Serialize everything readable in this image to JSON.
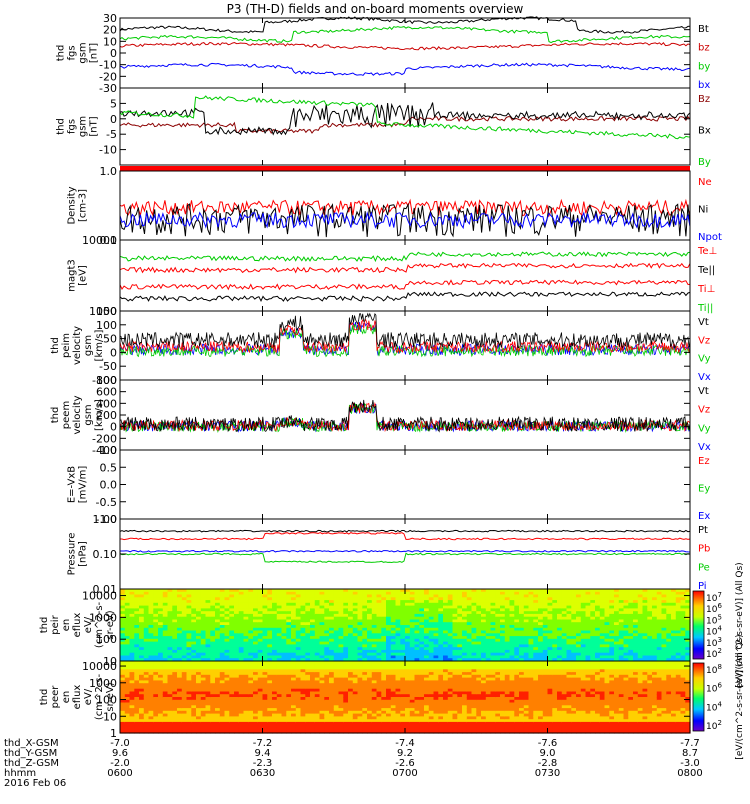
{
  "title": "P3 (TH-D) fields and on-board moments overview",
  "colors": {
    "black": "#000000",
    "red": "#ff0000",
    "green": "#00dd00",
    "blue": "#0000ff"
  },
  "time_axis": {
    "ticks": [
      "0600",
      "0630",
      "0700",
      "0730",
      "0800"
    ],
    "date": "2016 Feb 06",
    "rows": [
      {
        "label": "thd_X-GSM",
        "values": [
          "-7.0",
          "-7.2",
          "-7.4",
          "-7.6",
          "-7.7"
        ]
      },
      {
        "label": "thd_Y-GSM",
        "values": [
          "9.6",
          "9.4",
          "9.2",
          "9.0",
          "8.7"
        ]
      },
      {
        "label": "thd_Z-GSM",
        "values": [
          "-2.0",
          "-2.3",
          "-2.6",
          "-2.8",
          "-3.0"
        ]
      },
      {
        "label": "hhmm",
        "values": [
          "0600",
          "0630",
          "0700",
          "0730",
          "0800"
        ]
      }
    ]
  },
  "chart_data": [
    {
      "type": "line",
      "ylabel": [
        "thd",
        "fgs",
        "gsm",
        "[nT]"
      ],
      "ylim": [
        -30,
        30
      ],
      "yticks": [
        "30",
        "20",
        "10",
        "0",
        "-10",
        "-20",
        "-30"
      ],
      "series": [
        {
          "name": "Bt",
          "color": "#000000"
        },
        {
          "name": "bz",
          "color": "#cc0000"
        },
        {
          "name": "by",
          "color": "#00cc00"
        },
        {
          "name": "bx",
          "color": "#0000ff"
        }
      ]
    },
    {
      "type": "line",
      "ylabel": [
        "thd",
        "fgs",
        "gsm",
        "[nT]"
      ],
      "ylim": [
        -15,
        10
      ],
      "yticks": [
        "5",
        "0",
        "-5",
        "-10"
      ],
      "series": [
        {
          "name": "Bz",
          "color": "#8b0000"
        },
        {
          "name": "Bx",
          "color": "#000000"
        },
        {
          "name": "By",
          "color": "#00cc00"
        }
      ]
    },
    {
      "type": "line",
      "ylabel": [
        "Density",
        "[cm-3]"
      ],
      "ylim": [
        0.1,
        1.0
      ],
      "yscale": "log",
      "yticks": [
        "1.0",
        "0.1"
      ],
      "series": [
        {
          "name": "Ne",
          "color": "#ff0000"
        },
        {
          "name": "Ni",
          "color": "#000000"
        },
        {
          "name": "Npot",
          "color": "#0000ff"
        }
      ]
    },
    {
      "type": "line",
      "ylabel": [
        "magt3",
        "[eV]"
      ],
      "ylim": [
        1000,
        10000
      ],
      "yscale": "log",
      "yticks": [
        "10000",
        "1000"
      ],
      "series": [
        {
          "name": "Te⊥",
          "color": "#ff0000"
        },
        {
          "name": "Te||",
          "color": "#000000"
        },
        {
          "name": "Ti⊥",
          "color": "#ff0000"
        },
        {
          "name": "Ti||",
          "color": "#00cc00"
        }
      ]
    },
    {
      "type": "line",
      "ylabel": [
        "thd",
        "peim",
        "velocity",
        "gsm",
        "[km/s]"
      ],
      "ylim": [
        -100,
        150
      ],
      "yticks": [
        "150",
        "100",
        "50",
        "0",
        "-50",
        "-100"
      ],
      "series": [
        {
          "name": "Vt",
          "color": "#000000"
        },
        {
          "name": "Vz",
          "color": "#ff0000"
        },
        {
          "name": "Vy",
          "color": "#00cc00"
        },
        {
          "name": "Vx",
          "color": "#0000ff"
        }
      ]
    },
    {
      "type": "line",
      "ylabel": [
        "thd",
        "peem",
        "velocity",
        "gsm",
        "[km/s]"
      ],
      "ylim": [
        -400,
        800
      ],
      "yticks": [
        "800",
        "600",
        "400",
        "200",
        "0",
        "-200",
        "-400"
      ],
      "series": [
        {
          "name": "Vt",
          "color": "#000000"
        },
        {
          "name": "Vz",
          "color": "#ff0000"
        },
        {
          "name": "Vy",
          "color": "#00cc00"
        },
        {
          "name": "Vx",
          "color": "#0000ff"
        }
      ]
    },
    {
      "type": "line",
      "ylabel": [
        "E=-VxB",
        "[mV/m]"
      ],
      "ylim": [
        -1.0,
        1.0
      ],
      "yticks": [
        "1.0",
        "0.5",
        "0.0",
        "-0.5",
        "-1.0"
      ],
      "series": [
        {
          "name": "Ez",
          "color": "#ff0000"
        },
        {
          "name": "Ey",
          "color": "#00cc00"
        },
        {
          "name": "Ex",
          "color": "#0000ff"
        }
      ]
    },
    {
      "type": "line",
      "ylabel": [
        "Pressure",
        "[nPa]"
      ],
      "ylim": [
        0.01,
        1.0
      ],
      "yscale": "log",
      "yticks": [
        "1.00",
        "0.10",
        "0.01"
      ],
      "series": [
        {
          "name": "Pt",
          "color": "#000000"
        },
        {
          "name": "Pb",
          "color": "#ff0000"
        },
        {
          "name": "Pe",
          "color": "#00cc00"
        },
        {
          "name": "Pi",
          "color": "#0000ff"
        }
      ]
    },
    {
      "type": "heatmap",
      "ylabel": [
        "thd",
        "peir",
        "en",
        "eflux",
        "eV/",
        "(cm^2-s-",
        "sr-eV)"
      ],
      "ylim": [
        10,
        20000
      ],
      "yscale": "log",
      "yticks": [
        "10000",
        "1000",
        "100",
        "10"
      ],
      "colorbar": {
        "ticks": [
          "10^7",
          "10^6",
          "10^5",
          "10^4",
          "10^3",
          "10^2"
        ],
        "label": "[eV/(cm^2-s-sr-eV)] (All Qs)"
      }
    },
    {
      "type": "heatmap",
      "ylabel": [
        "thd",
        "peer",
        "en",
        "eflux",
        "eV/",
        "(cm^2-s-",
        "sr-eV)"
      ],
      "ylim": [
        1,
        20000
      ],
      "yscale": "log",
      "yticks": [
        "10000",
        "1000",
        "100",
        "10",
        "1"
      ],
      "colorbar": {
        "ticks": [
          "10^8",
          "10^6",
          "10^4",
          "10^2"
        ],
        "label": "[eV/(cm^2-s-sr-eV)] (All Qs)"
      }
    }
  ]
}
